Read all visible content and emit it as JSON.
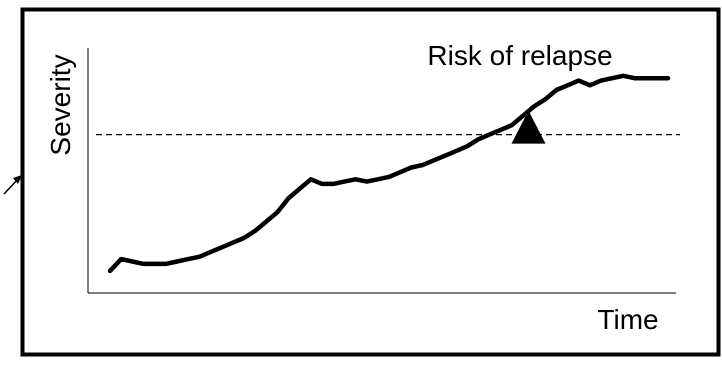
{
  "chart_data": {
    "type": "line",
    "title": "Risk of relapse",
    "xlabel": "Time",
    "ylabel": "Severity",
    "xlim": [
      0,
      100
    ],
    "ylim": [
      0,
      100
    ],
    "grid": false,
    "threshold": 64,
    "marker_x": 75,
    "series": [
      {
        "x": [
          0,
          2,
          4,
          6,
          8,
          10,
          12,
          14,
          16,
          18,
          20,
          22,
          24,
          26,
          28,
          30,
          32,
          34,
          36,
          38,
          40,
          42,
          44,
          46,
          48,
          50,
          52,
          54,
          56,
          58,
          60,
          62,
          64,
          66,
          68,
          70,
          72,
          74,
          76,
          78,
          80,
          82,
          84,
          86,
          88,
          90,
          92,
          94,
          96,
          98,
          100
        ],
        "values": [
          6,
          11,
          10,
          9,
          9,
          9,
          10,
          11,
          12,
          14,
          16,
          18,
          20,
          23,
          27,
          31,
          37,
          41,
          45,
          43,
          43,
          44,
          45,
          44,
          45,
          46,
          48,
          50,
          51,
          53,
          55,
          57,
          59,
          62,
          64,
          66,
          68,
          72,
          76,
          79,
          83,
          85,
          87,
          85,
          87,
          88,
          89,
          88,
          88,
          88,
          88
        ]
      }
    ]
  }
}
